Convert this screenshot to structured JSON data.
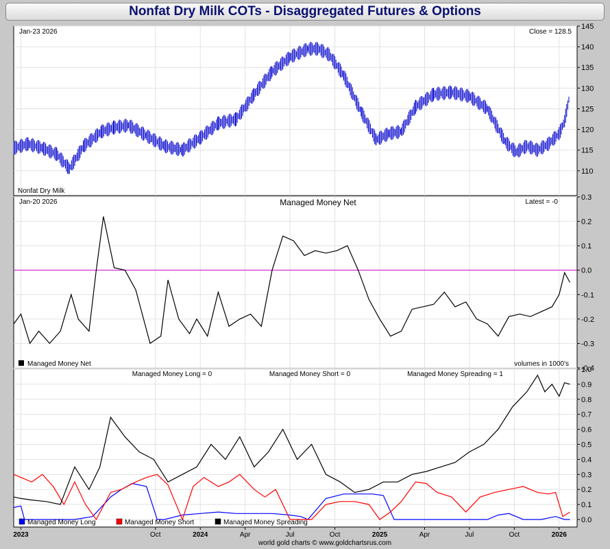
{
  "title": "Nonfat Dry Milk COTs - Disaggregated Futures & Options",
  "footer": "world gold charts © www.goldchartsrus.com",
  "colors": {
    "price": "#0000cc",
    "net": "#000000",
    "zero_line": "#cc00cc",
    "long": "#0000ff",
    "short": "#ff0000",
    "spreading": "#000000"
  },
  "chart_data": [
    {
      "type": "ohlc",
      "panel": "price",
      "date_label": "Jan-23  2026",
      "latest_label": "Close = 128.5",
      "series_label": "Nonfat Dry Milk",
      "ylim": [
        104,
        145
      ],
      "yticks": [
        110,
        115,
        120,
        125,
        130,
        135,
        140,
        145
      ],
      "x": [
        2022.96,
        2023.04,
        2023.12,
        2023.2,
        2023.27,
        2023.35,
        2023.45,
        2023.52,
        2023.6,
        2023.7,
        2023.8,
        2023.9,
        2024.0,
        2024.1,
        2024.2,
        2024.3,
        2024.4,
        2024.5,
        2024.6,
        2024.66,
        2024.72,
        2024.8,
        2024.9,
        2024.98,
        2025.05,
        2025.12,
        2025.2,
        2025.3,
        2025.4,
        2025.5,
        2025.6,
        2025.7,
        2025.76,
        2025.82,
        2025.88,
        2025.94,
        2026.0,
        2026.03,
        2026.06
      ],
      "values": [
        115.5,
        116.5,
        115.5,
        114,
        110.5,
        116,
        119.5,
        120.5,
        121,
        118.5,
        116,
        115,
        118,
        121.5,
        122.5,
        128.5,
        134,
        137.5,
        139.5,
        139.5,
        138,
        133,
        124,
        117.5,
        119,
        119.5,
        125.5,
        128.5,
        129,
        128,
        125,
        117,
        114.5,
        116,
        115,
        116.5,
        119,
        122,
        128.5
      ]
    },
    {
      "type": "line",
      "panel": "net",
      "title": "Managed Money Net",
      "date_label": "Jan-20  2026",
      "latest_label": "Latest = -0",
      "units_label": "volumes in 1000's",
      "ylim": [
        -0.4,
        0.3
      ],
      "yticks": [
        -0.4,
        -0.3,
        -0.2,
        -0.1,
        0.0,
        0.1,
        0.2,
        0.3
      ],
      "series": [
        {
          "name": "Managed Money Net",
          "x": [
            2022.96,
            2023.0,
            2023.05,
            2023.1,
            2023.16,
            2023.22,
            2023.28,
            2023.32,
            2023.38,
            2023.42,
            2023.46,
            2023.52,
            2023.58,
            2023.64,
            2023.72,
            2023.78,
            2023.82,
            2023.88,
            2023.94,
            2023.98,
            2024.04,
            2024.1,
            2024.16,
            2024.22,
            2024.28,
            2024.34,
            2024.4,
            2024.46,
            2024.52,
            2024.58,
            2024.64,
            2024.7,
            2024.76,
            2024.82,
            2024.88,
            2024.94,
            2025.0,
            2025.06,
            2025.12,
            2025.18,
            2025.24,
            2025.3,
            2025.36,
            2025.42,
            2025.48,
            2025.54,
            2025.6,
            2025.66,
            2025.72,
            2025.78,
            2025.84,
            2025.9,
            2025.96,
            2026.0,
            2026.03,
            2026.06
          ],
          "values": [
            -0.22,
            -0.18,
            -0.3,
            -0.25,
            -0.3,
            -0.25,
            -0.1,
            -0.2,
            -0.25,
            0.0,
            0.22,
            0.01,
            0.0,
            -0.08,
            -0.3,
            -0.27,
            -0.04,
            -0.2,
            -0.26,
            -0.2,
            -0.27,
            -0.09,
            -0.23,
            -0.2,
            -0.18,
            -0.23,
            0.0,
            0.14,
            0.12,
            0.06,
            0.08,
            0.07,
            0.08,
            0.1,
            0.0,
            -0.12,
            -0.2,
            -0.27,
            -0.25,
            -0.16,
            -0.15,
            -0.14,
            -0.09,
            -0.15,
            -0.13,
            -0.2,
            -0.22,
            -0.27,
            -0.19,
            -0.18,
            -0.19,
            -0.17,
            -0.15,
            -0.1,
            -0.01,
            -0.05
          ]
        }
      ],
      "legend": "bottom-left"
    },
    {
      "type": "line",
      "panel": "positions",
      "ylim": [
        -0.05,
        1.0
      ],
      "yticks": [
        0.0,
        0.1,
        0.2,
        0.3,
        0.4,
        0.5,
        0.6,
        0.7,
        0.8,
        0.9,
        1.0
      ],
      "header_labels": [
        "Managed Money Long = 0",
        "Managed Money Short = 0",
        "Managed Money Spreading = 1"
      ],
      "series": [
        {
          "name": "Managed Money Long",
          "x": [
            2022.96,
            2023.0,
            2023.02,
            2023.1,
            2023.2,
            2023.3,
            2023.4,
            2023.5,
            2023.56,
            2023.62,
            2023.7,
            2023.76,
            2023.8,
            2023.9,
            2024.0,
            2024.1,
            2024.2,
            2024.3,
            2024.4,
            2024.5,
            2024.56,
            2024.6,
            2024.7,
            2024.8,
            2024.9,
            2024.96,
            2025.02,
            2025.08,
            2025.2,
            2025.4,
            2025.6,
            2025.66,
            2025.72,
            2025.8,
            2025.9,
            2025.98,
            2026.03,
            2026.06
          ],
          "values": [
            0.08,
            0.09,
            0.0,
            0.0,
            0.0,
            0.0,
            0.02,
            0.15,
            0.2,
            0.24,
            0.22,
            0.0,
            0.0,
            0.03,
            0.04,
            0.05,
            0.04,
            0.04,
            0.04,
            0.03,
            0.02,
            0.0,
            0.14,
            0.17,
            0.17,
            0.17,
            0.16,
            0.0,
            0.0,
            0.0,
            0.0,
            0.03,
            0.04,
            0.0,
            0.0,
            0.02,
            0.0,
            0.0
          ]
        },
        {
          "name": "Managed Money Short",
          "x": [
            2022.96,
            2023.0,
            2023.06,
            2023.12,
            2023.18,
            2023.24,
            2023.3,
            2023.36,
            2023.42,
            2023.5,
            2023.56,
            2023.64,
            2023.7,
            2023.76,
            2023.82,
            2023.9,
            2023.96,
            2024.02,
            2024.1,
            2024.16,
            2024.22,
            2024.3,
            2024.36,
            2024.42,
            2024.5,
            2024.56,
            2024.62,
            2024.7,
            2024.78,
            2024.86,
            2024.94,
            2025.0,
            2025.06,
            2025.12,
            2025.2,
            2025.26,
            2025.32,
            2025.4,
            2025.48,
            2025.56,
            2025.64,
            2025.72,
            2025.8,
            2025.88,
            2025.94,
            2025.98,
            2026.02,
            2026.06
          ],
          "values": [
            0.3,
            0.28,
            0.25,
            0.3,
            0.22,
            0.1,
            0.25,
            0.1,
            0.0,
            0.18,
            0.2,
            0.25,
            0.28,
            0.3,
            0.23,
            0.0,
            0.22,
            0.28,
            0.22,
            0.25,
            0.3,
            0.2,
            0.15,
            0.2,
            0.0,
            0.0,
            0.0,
            0.1,
            0.12,
            0.12,
            0.1,
            0.0,
            0.05,
            0.12,
            0.25,
            0.24,
            0.18,
            0.15,
            0.05,
            0.15,
            0.18,
            0.2,
            0.22,
            0.18,
            0.17,
            0.18,
            0.02,
            0.05
          ]
        },
        {
          "name": "Managed Money Spreading",
          "x": [
            2022.96,
            2023.0,
            2023.06,
            2023.14,
            2023.22,
            2023.3,
            2023.38,
            2023.44,
            2023.5,
            2023.58,
            2023.66,
            2023.74,
            2023.82,
            2023.9,
            2023.98,
            2024.06,
            2024.14,
            2024.22,
            2024.3,
            2024.38,
            2024.46,
            2024.54,
            2024.62,
            2024.7,
            2024.78,
            2024.86,
            2024.94,
            2025.02,
            2025.1,
            2025.18,
            2025.26,
            2025.34,
            2025.42,
            2025.5,
            2025.58,
            2025.66,
            2025.74,
            2025.82,
            2025.88,
            2025.92,
            2025.96,
            2026.0,
            2026.03,
            2026.06
          ],
          "values": [
            0.15,
            0.14,
            0.13,
            0.12,
            0.1,
            0.35,
            0.2,
            0.35,
            0.68,
            0.55,
            0.45,
            0.4,
            0.25,
            0.3,
            0.35,
            0.5,
            0.4,
            0.55,
            0.35,
            0.45,
            0.6,
            0.4,
            0.5,
            0.3,
            0.25,
            0.18,
            0.2,
            0.25,
            0.25,
            0.3,
            0.32,
            0.35,
            0.38,
            0.45,
            0.5,
            0.6,
            0.75,
            0.85,
            0.96,
            0.85,
            0.9,
            0.82,
            0.91,
            0.9
          ]
        }
      ],
      "legend": "bottom-left"
    }
  ],
  "x_axis": {
    "range": [
      2022.96,
      2026.1
    ],
    "ticks": [
      {
        "x": 2023.0,
        "label": "2023",
        "bold": true
      },
      {
        "x": 2023.75,
        "label": "Oct",
        "bold": false
      },
      {
        "x": 2024.0,
        "label": "2024",
        "bold": true
      },
      {
        "x": 2024.25,
        "label": "Apr",
        "bold": false
      },
      {
        "x": 2024.5,
        "label": "Jul",
        "bold": false
      },
      {
        "x": 2024.75,
        "label": "Oct",
        "bold": false
      },
      {
        "x": 2025.0,
        "label": "2025",
        "bold": true
      },
      {
        "x": 2025.25,
        "label": "Apr",
        "bold": false
      },
      {
        "x": 2025.5,
        "label": "Jul",
        "bold": false
      },
      {
        "x": 2025.75,
        "label": "Oct",
        "bold": false
      },
      {
        "x": 2026.0,
        "label": "2026",
        "bold": true
      }
    ]
  }
}
